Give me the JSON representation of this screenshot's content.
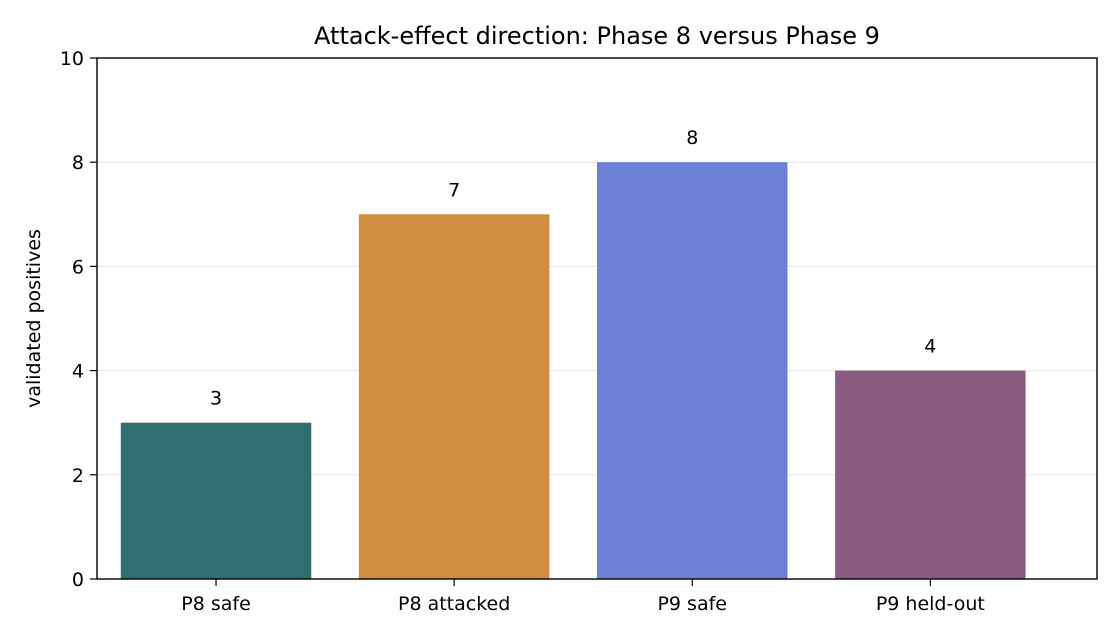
{
  "chart_data": {
    "type": "bar",
    "title": "Attack-effect direction: Phase 8 versus Phase 9",
    "xlabel": "",
    "ylabel": "validated positives",
    "categories": [
      "P8 safe",
      "P8 attacked",
      "P9 safe",
      "P9 held-out"
    ],
    "values": [
      3,
      7,
      8,
      4
    ],
    "data_labels": [
      "3",
      "7",
      "8",
      "4"
    ],
    "colors": [
      "#316e72",
      "#d08c40",
      "#6c80d6",
      "#8a5a80"
    ],
    "ylim": [
      0,
      10
    ],
    "yticks": [
      0,
      2,
      4,
      6,
      8,
      10
    ],
    "ytick_labels": [
      "0",
      "2",
      "4",
      "6",
      "8",
      "10"
    ],
    "grid": {
      "y": true,
      "x": false,
      "color": "#e6e6e6"
    },
    "legend": null
  }
}
